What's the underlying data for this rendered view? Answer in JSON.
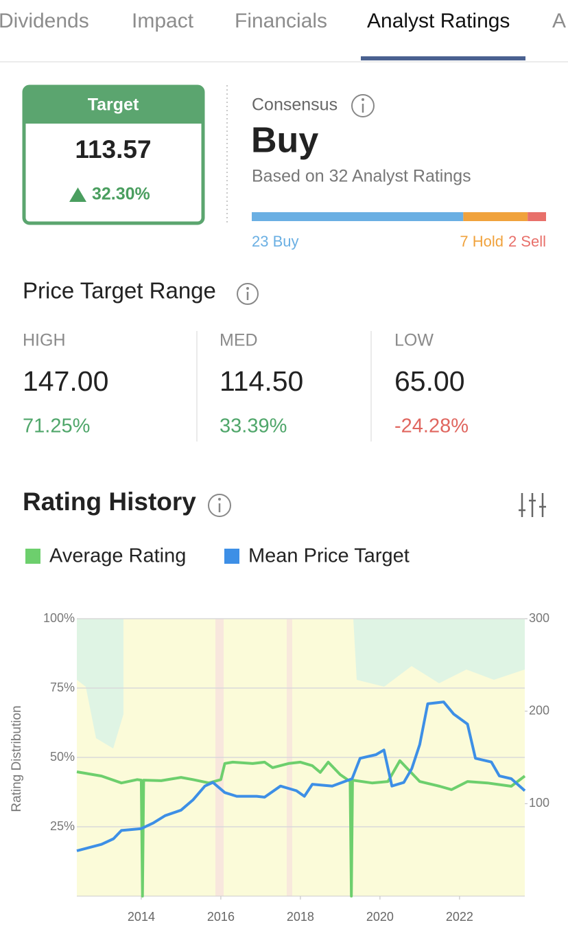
{
  "tabs": [
    "Dividends",
    "Impact",
    "Financials",
    "Analyst Ratings",
    "A"
  ],
  "target": {
    "title": "Target",
    "value": "113.57",
    "change": "32.30%"
  },
  "consensus": {
    "label": "Consensus",
    "rating": "Buy",
    "basis": "Based on 32 Analyst Ratings",
    "distribution": [
      {
        "label": "23 Buy",
        "count": 23,
        "color": "#6aafe3"
      },
      {
        "label": "7 Hold",
        "count": 7,
        "color": "#f0a23c"
      },
      {
        "label": "2 Sell",
        "count": 2,
        "color": "#e8706a"
      }
    ]
  },
  "price_target_range": {
    "title": "Price Target Range",
    "columns": [
      {
        "label": "HIGH",
        "value": "147.00",
        "change": "71.25%"
      },
      {
        "label": "MED",
        "value": "114.50",
        "change": "33.39%"
      },
      {
        "label": "LOW",
        "value": "65.00",
        "change": "-24.28%"
      }
    ]
  },
  "rating_history": {
    "title": "Rating History",
    "chart_data": {
      "type": "line",
      "y_label": "Rating Distribution",
      "xlim": [
        2012.38,
        2023.64
      ],
      "xticks": [
        2014,
        2016,
        2018,
        2020,
        2022
      ],
      "ylim": [
        0,
        100
      ],
      "yticks": [
        {
          "value": 25,
          "label": "25%"
        },
        {
          "value": 50,
          "label": "50%"
        },
        {
          "value": 75,
          "label": "75%"
        },
        {
          "value": 100,
          "label": "100%"
        }
      ],
      "y2lim": [
        0,
        300
      ],
      "y2ticks": [
        100,
        200,
        300
      ],
      "grid": true,
      "series": [
        {
          "name": "Average Rating",
          "color": "#6dcf6d",
          "x": [
            2012.38,
            2013.0,
            2013.5,
            2013.9,
            2014.0,
            2014.03,
            2014.06,
            2014.5,
            2015.0,
            2015.3,
            2015.7,
            2016.0,
            2016.1,
            2016.3,
            2016.8,
            2017.1,
            2017.3,
            2017.7,
            2018.0,
            2018.3,
            2018.5,
            2018.7,
            2019.0,
            2019.25,
            2019.28,
            2019.31,
            2019.8,
            2020.2,
            2020.5,
            2020.7,
            2021.0,
            2021.5,
            2021.8,
            2022.2,
            2022.7,
            2023.3,
            2023.64
          ],
          "values": [
            44.8,
            43.3,
            40.8,
            42,
            41.8,
            0,
            41.8,
            41.6,
            42.8,
            42,
            40.8,
            42,
            47.8,
            48.3,
            47.8,
            48.3,
            46.3,
            47.8,
            48.3,
            47,
            44.6,
            48.3,
            43.8,
            41.3,
            0,
            41.8,
            40.8,
            41.3,
            48.8,
            45.8,
            41.3,
            39.6,
            38.4,
            41.3,
            40.8,
            39.6,
            43.3
          ]
        },
        {
          "name": "Mean Price Target",
          "color": "#3d8fe6",
          "axis": "y2",
          "x": [
            2012.38,
            2013.0,
            2013.3,
            2013.5,
            2014.0,
            2014.3,
            2014.6,
            2015.0,
            2015.3,
            2015.6,
            2015.8,
            2016.1,
            2016.4,
            2016.9,
            2017.1,
            2017.5,
            2017.9,
            2018.1,
            2018.3,
            2018.8,
            2019.3,
            2019.5,
            2019.9,
            2020.1,
            2020.3,
            2020.6,
            2020.8,
            2021.0,
            2021.2,
            2021.6,
            2021.85,
            2022.2,
            2022.4,
            2022.8,
            2023.0,
            2023.3,
            2023.64
          ],
          "values": [
            49,
            56,
            62,
            71,
            73,
            79,
            87,
            93,
            104,
            119,
            123,
            112,
            108,
            108,
            107,
            119,
            114,
            108,
            121,
            119,
            127,
            149,
            153,
            158,
            119,
            123,
            138,
            164,
            208,
            210,
            197,
            186,
            149,
            145,
            130,
            127,
            114
          ]
        }
      ]
    }
  }
}
